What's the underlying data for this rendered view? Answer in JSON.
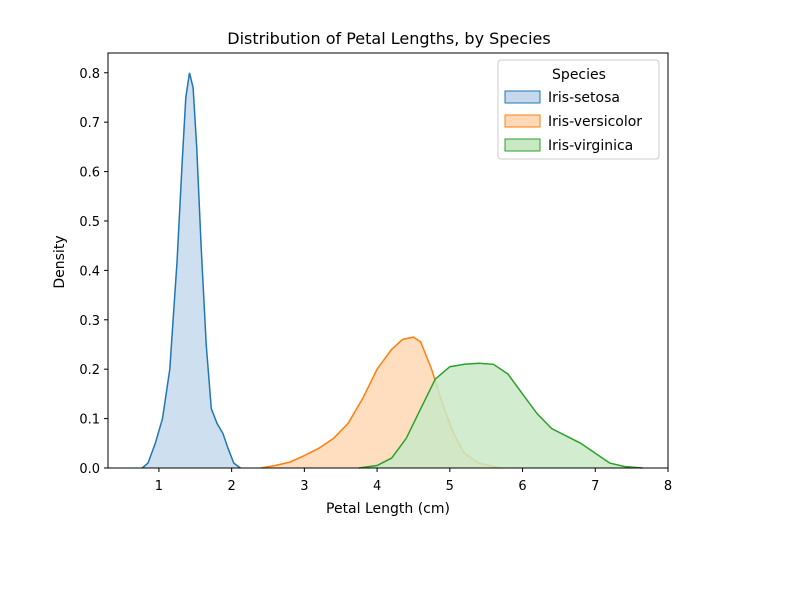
{
  "chart_data": {
    "type": "area",
    "title": "Distribution of Petal Lengths, by Species",
    "xlabel": "Petal Length (cm)",
    "ylabel": "Density",
    "xlim": [
      0.3,
      8.0
    ],
    "ylim": [
      0.0,
      0.84
    ],
    "xticks": [
      "1",
      "2",
      "3",
      "4",
      "5",
      "6",
      "7",
      "8"
    ],
    "yticks": [
      "0.0",
      "0.1",
      "0.2",
      "0.3",
      "0.4",
      "0.5",
      "0.6",
      "0.7",
      "0.8"
    ],
    "grid": false,
    "legend": {
      "title": "Species",
      "placement": "top-right"
    },
    "series": [
      {
        "name": "Iris-setosa",
        "color": "#1f77b4",
        "fill": "#c6d9ec",
        "points": [
          [
            0.77,
            0.0
          ],
          [
            0.85,
            0.01
          ],
          [
            0.95,
            0.05
          ],
          [
            1.05,
            0.1
          ],
          [
            1.15,
            0.2
          ],
          [
            1.25,
            0.42
          ],
          [
            1.32,
            0.62
          ],
          [
            1.37,
            0.75
          ],
          [
            1.42,
            0.8
          ],
          [
            1.47,
            0.77
          ],
          [
            1.52,
            0.65
          ],
          [
            1.58,
            0.45
          ],
          [
            1.65,
            0.25
          ],
          [
            1.72,
            0.12
          ],
          [
            1.8,
            0.09
          ],
          [
            1.88,
            0.07
          ],
          [
            1.95,
            0.04
          ],
          [
            2.03,
            0.01
          ],
          [
            2.12,
            0.0
          ]
        ]
      },
      {
        "name": "Iris-versicolor",
        "color": "#ff7f0e",
        "fill": "#ffd8b5",
        "points": [
          [
            2.4,
            0.0
          ],
          [
            2.6,
            0.005
          ],
          [
            2.8,
            0.012
          ],
          [
            3.0,
            0.025
          ],
          [
            3.2,
            0.04
          ],
          [
            3.4,
            0.06
          ],
          [
            3.6,
            0.09
          ],
          [
            3.8,
            0.14
          ],
          [
            4.0,
            0.2
          ],
          [
            4.2,
            0.24
          ],
          [
            4.35,
            0.26
          ],
          [
            4.5,
            0.265
          ],
          [
            4.6,
            0.255
          ],
          [
            4.75,
            0.2
          ],
          [
            4.9,
            0.13
          ],
          [
            5.05,
            0.07
          ],
          [
            5.2,
            0.03
          ],
          [
            5.4,
            0.01
          ],
          [
            5.6,
            0.003
          ],
          [
            5.7,
            0.0
          ]
        ]
      },
      {
        "name": "Iris-virginica",
        "color": "#2ca02c",
        "fill": "#c9e9c5",
        "points": [
          [
            3.75,
            0.0
          ],
          [
            4.0,
            0.005
          ],
          [
            4.2,
            0.02
          ],
          [
            4.4,
            0.06
          ],
          [
            4.6,
            0.12
          ],
          [
            4.8,
            0.18
          ],
          [
            5.0,
            0.205
          ],
          [
            5.2,
            0.21
          ],
          [
            5.4,
            0.212
          ],
          [
            5.6,
            0.21
          ],
          [
            5.8,
            0.19
          ],
          [
            6.0,
            0.15
          ],
          [
            6.2,
            0.11
          ],
          [
            6.4,
            0.08
          ],
          [
            6.6,
            0.065
          ],
          [
            6.8,
            0.05
          ],
          [
            7.0,
            0.03
          ],
          [
            7.2,
            0.01
          ],
          [
            7.4,
            0.003
          ],
          [
            7.65,
            0.0
          ]
        ]
      }
    ]
  }
}
